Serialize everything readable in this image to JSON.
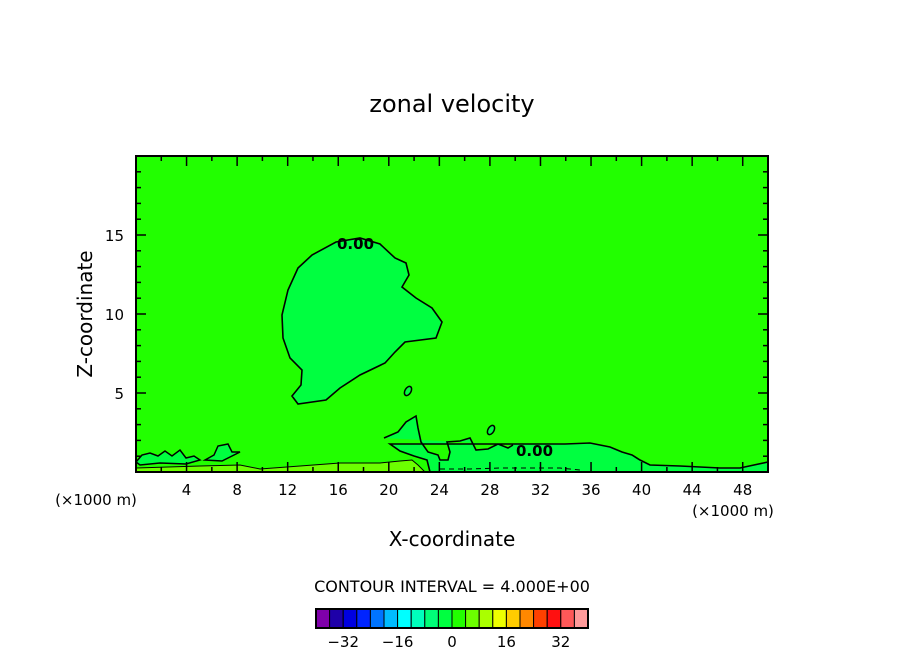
{
  "chart_data": {
    "type": "contour",
    "title": "zonal velocity",
    "xlabel": "X-coordinate",
    "ylabel": "Z-coordinate",
    "x_unit_label": "(×1000 m)",
    "x_unit_label_right": "(×1000 m)",
    "xlim": [
      0,
      50
    ],
    "ylim": [
      0,
      20
    ],
    "xticks": [
      4,
      8,
      12,
      16,
      20,
      24,
      28,
      32,
      36,
      40,
      44,
      48
    ],
    "yticks": [
      5,
      10,
      15
    ],
    "contour_labels": [
      "0.00",
      "0.00"
    ],
    "contour_interval_text": "CONTOUR INTERVAL = 4.000E+00",
    "levels": [
      -40,
      -36,
      -32,
      -28,
      -24,
      -20,
      -16,
      -12,
      -8,
      -4,
      0,
      4,
      8,
      12,
      16,
      20,
      24,
      28,
      32,
      36,
      40
    ],
    "colorbar_ticks": [
      -32,
      -16,
      0,
      16,
      32
    ],
    "colorbar_tick_labels": [
      "−32",
      "−16",
      "0",
      "16",
      "32"
    ],
    "colors": [
      "#7f00aa",
      "#1e00a8",
      "#0000e0",
      "#0024ff",
      "#0074ff",
      "#00bcff",
      "#00ffff",
      "#00ffbc",
      "#00ff78",
      "#00ff40",
      "#22ff00",
      "#6cff00",
      "#aaff00",
      "#eeff00",
      "#ffcc00",
      "#ff8800",
      "#ff4000",
      "#ff1010",
      "#ff5858",
      "#ff9a9a"
    ],
    "background_level_color": "#22ff00",
    "negative_region_color": "#00ff40",
    "low_positive_color": "#6cff00"
  }
}
